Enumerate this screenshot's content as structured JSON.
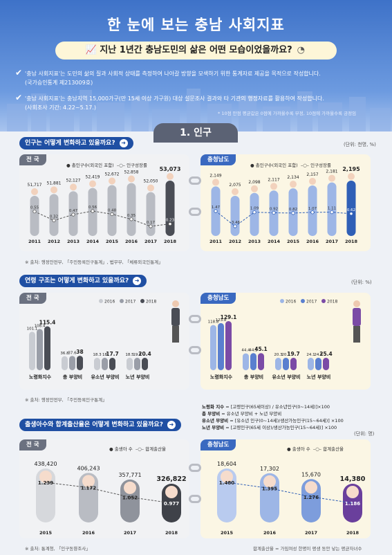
{
  "header": {
    "title": "한 눈에 보는 충남 사회지표",
    "subtitle": "지난 1년간 충남도민의 삶은 어떤 모습이었을까요?",
    "bullets": [
      {
        "line1": "'충남 사회지표'는 도민의 삶의 질과 사회적 상태를 측정하여 나아갈 방향을 모색하기 위한 통계자료 제공을 목적으로 작성합니다.",
        "line2": "(국가승인통계 제213009호)"
      },
      {
        "line1": "'충남 사회지표'는 충남지역 15,000가구(만 15세 이상 가구원) 대상 설문조사 결과와 타 기관의 행정자료를 활용하여 작성합니다.",
        "line2": "(사회조사 기간: 4.22~5.17.)"
      }
    ],
    "note": "* 10점 만점 평균값은 0점에 가까울수록 부정, 10점에 가까울수록 긍정임"
  },
  "section": {
    "title": "1. 인구"
  },
  "q1": {
    "text": "인구는 어떻게 변화하고 있을까요?",
    "unit": "(단위: 천명, %)",
    "source": "※ 출처: 행정안전부, 「주민등록인구통계」, 법무부, 「체류외국인통계」"
  },
  "q2": {
    "text": "연령 구조는 어떻게 변화하고 있을까요?",
    "unit": "(단위: %)",
    "source": "※ 출처: 행정안전부, 「주민등록인구통계」"
  },
  "q3": {
    "text": "출생아수와 합계출산율은 어떻게 변화하고 있을까요?",
    "unit": "(단위: 명)",
    "source": "※ 출처: 통계청, 「인구동향조사」",
    "footnote": "합계출산율 = 가임여성 한명이 평생 동안 낳는 평균자녀수"
  },
  "labels": {
    "nation": "전 국",
    "chungnam": "충청남도",
    "pop_total": "총인구수(외국인 포함)",
    "pop_growth": "인구성장률",
    "births": "출생아 수",
    "tfr": "합계출산율"
  },
  "definitions": [
    {
      "term": "노령화 지수",
      "formula": "= [고령인구(65세이상) / 유소년인구(0~14세)]×100"
    },
    {
      "term": "총 부양비",
      "formula": "= 유소년 부양비 + 노년 부양비"
    },
    {
      "term": "유소년 부양비",
      "formula": "= [유소년 인구(0~14세)/생산가능인구(15~64세)] ×100"
    },
    {
      "term": "노년 부양비",
      "formula": "= [고령인구(65세 이상)/생산가능인구(15~64세)] ×100"
    }
  ],
  "chart_data": [
    {
      "type": "bar",
      "title": "전 국",
      "categories": [
        "2011",
        "2012",
        "2013",
        "2014",
        "2015",
        "2016",
        "2017",
        "2018"
      ],
      "series": [
        {
          "name": "총인구수(외국인 포함)",
          "values": [
            51717,
            51881,
            52127,
            52419,
            52672,
            52858,
            52050,
            53073
          ],
          "labels": [
            "51,717",
            "51,881",
            "52,127",
            "52,419",
            "52,672",
            "52,858",
            "52,050",
            "53,073"
          ]
        },
        {
          "name": "인구성장률",
          "type": "line",
          "values": [
            0.55,
            0.32,
            0.47,
            0.56,
            0.48,
            0.35,
            0.17,
            0.23
          ],
          "labels": [
            "0.55",
            "0.32",
            "0.47",
            "0.56",
            "0.48",
            "0.35",
            "0.17",
            "0.23"
          ]
        }
      ]
    },
    {
      "type": "bar",
      "title": "충청남도",
      "categories": [
        "2011",
        "2012",
        "2013",
        "2014",
        "2015",
        "2016",
        "2017",
        "2018"
      ],
      "series": [
        {
          "name": "총인구수(외국인 포함)",
          "values": [
            2149,
            2075,
            2098,
            2117,
            2134,
            2157,
            2181,
            2195
          ],
          "labels": [
            "2,149",
            "2,075",
            "2,098",
            "2,117",
            "2,134",
            "2,157",
            "2,181",
            "2,195"
          ]
        },
        {
          "name": "인구성장률",
          "type": "line",
          "values": [
            1.47,
            -3.46,
            1.09,
            0.92,
            0.82,
            1.07,
            1.11,
            0.62
          ],
          "labels": [
            "1.47",
            "-3.46",
            "1.09",
            "0.92",
            "0.82",
            "1.07",
            "1.11",
            "0.62"
          ]
        }
      ]
    },
    {
      "type": "bar",
      "title": "전 국",
      "categories": [
        "노령화지수",
        "총 부양비",
        "유소년 부양비",
        "노년 부양비"
      ],
      "series": [
        {
          "name": "2016",
          "values": [
            101.1,
            36.8,
            18.3,
            18.5
          ]
        },
        {
          "name": "2017",
          "values": [
            108.4,
            37.6,
            18.0,
            19.5
          ]
        },
        {
          "name": "2018",
          "values": [
            115.4,
            38.0,
            17.7,
            20.4
          ]
        }
      ]
    },
    {
      "type": "bar",
      "title": "충청남도",
      "categories": [
        "노령화지수",
        "총 부양비",
        "유소년 부양비",
        "노년 부양비"
      ],
      "series": [
        {
          "name": "2016",
          "values": [
            118.8,
            44.4,
            20.3,
            24.1
          ]
        },
        {
          "name": "2017",
          "values": [
            123.8,
            44.9,
            20.1,
            24.8
          ]
        },
        {
          "name": "2018",
          "values": [
            129.1,
            45.1,
            19.7,
            25.4
          ]
        }
      ]
    },
    {
      "type": "bar",
      "title": "전 국",
      "categories": [
        "2015",
        "2016",
        "2017",
        "2018"
      ],
      "series": [
        {
          "name": "출생아 수",
          "values": [
            438420,
            406243,
            357771,
            326822
          ],
          "labels": [
            "438,420",
            "406,243",
            "357,771",
            "326,822"
          ]
        },
        {
          "name": "합계출산율",
          "type": "line",
          "values": [
            1.239,
            1.172,
            1.052,
            0.977
          ],
          "labels": [
            "1.239",
            "1.172",
            "1.052",
            "0.977"
          ]
        }
      ]
    },
    {
      "type": "bar",
      "title": "충청남도",
      "categories": [
        "2015",
        "2016",
        "2017",
        "2018"
      ],
      "series": [
        {
          "name": "출생아 수",
          "values": [
            18604,
            17302,
            15670,
            14380
          ],
          "labels": [
            "18,604",
            "17,302",
            "15,670",
            "14,380"
          ]
        },
        {
          "name": "합계출산율",
          "type": "line",
          "values": [
            1.48,
            1.395,
            1.276,
            1.186
          ],
          "labels": [
            "1.480",
            "1.395",
            "1.276",
            "1.186"
          ]
        }
      ]
    }
  ]
}
